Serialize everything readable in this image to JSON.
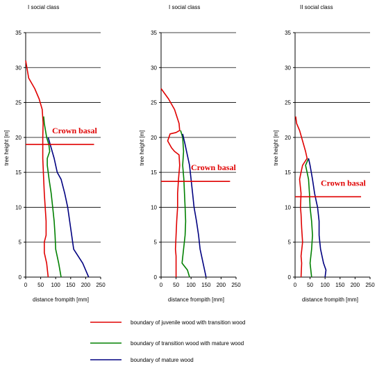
{
  "chart_data": [
    {
      "type": "line",
      "title": "I social class",
      "xlabel": "distance frompith [mm]",
      "ylabel": "tree height [m]",
      "xlim": [
        0,
        250
      ],
      "ylim": [
        0,
        35
      ],
      "xticks": [
        "0",
        "50",
        "100",
        "150",
        "200",
        "250"
      ],
      "yticks": [
        "0",
        "5",
        "10",
        "15",
        "20",
        "25",
        "30",
        "35"
      ],
      "grid": "horizontal",
      "annotation": {
        "text": "Crown basal",
        "height": 19,
        "x_range": [
          0,
          228
        ]
      },
      "series": [
        {
          "color": "#e00000",
          "points": [
            [
              75,
              0
            ],
            [
              70,
              2
            ],
            [
              62,
              3.5
            ],
            [
              62,
              5
            ],
            [
              68,
              6
            ],
            [
              68,
              8
            ],
            [
              65,
              10
            ],
            [
              62,
              12
            ],
            [
              60,
              14
            ],
            [
              57,
              17
            ],
            [
              57,
              20
            ],
            [
              58,
              22
            ],
            [
              55,
              24
            ],
            [
              45,
              25.5
            ],
            [
              30,
              27
            ],
            [
              10,
              28.5
            ],
            [
              0,
              31
            ]
          ]
        },
        {
          "color": "#008000",
          "points": [
            [
              118,
              0
            ],
            [
              110,
              2
            ],
            [
              100,
              4
            ],
            [
              98,
              6
            ],
            [
              95,
              8
            ],
            [
              90,
              10
            ],
            [
              85,
              12
            ],
            [
              78,
              14
            ],
            [
              72,
              16
            ],
            [
              72,
              17
            ],
            [
              80,
              18
            ],
            [
              77,
              19
            ],
            [
              70,
              20
            ],
            [
              62,
              22
            ],
            [
              60,
              23
            ]
          ]
        },
        {
          "color": "#000080",
          "points": [
            [
              210,
              0
            ],
            [
              200,
              1
            ],
            [
              190,
              2
            ],
            [
              160,
              4
            ],
            [
              150,
              7
            ],
            [
              140,
              10
            ],
            [
              130,
              12
            ],
            [
              118,
              14
            ],
            [
              105,
              15
            ],
            [
              95,
              17
            ],
            [
              85,
              18.5
            ],
            [
              75,
              20
            ]
          ]
        }
      ]
    },
    {
      "type": "line",
      "title": "I social class",
      "xlabel": "distance frompith [mm]",
      "ylabel": "tree height [m]",
      "xlim": [
        0,
        250
      ],
      "ylim": [
        0,
        35
      ],
      "xticks": [
        "0",
        "50",
        "100",
        "150",
        "200",
        "250"
      ],
      "yticks": [
        "0",
        "5",
        "10",
        "15",
        "20",
        "25",
        "30",
        "35"
      ],
      "grid": "horizontal",
      "annotation": {
        "text": "Crown basal",
        "height": 13.7,
        "x_range": [
          0,
          230
        ]
      },
      "series": [
        {
          "color": "#e00000",
          "points": [
            [
              50,
              0
            ],
            [
              50,
              3
            ],
            [
              48,
              4
            ],
            [
              50,
              6
            ],
            [
              52,
              8
            ],
            [
              55,
              10
            ],
            [
              55,
              12
            ],
            [
              58,
              14
            ],
            [
              62,
              16
            ],
            [
              60,
              17.5
            ],
            [
              45,
              18
            ],
            [
              35,
              18.5
            ],
            [
              22,
              19.5
            ],
            [
              30,
              20.5
            ],
            [
              50,
              20.7
            ],
            [
              62,
              21
            ],
            [
              60,
              22
            ],
            [
              45,
              24
            ],
            [
              25,
              25.5
            ],
            [
              0,
              27
            ]
          ]
        },
        {
          "color": "#008000",
          "points": [
            [
              95,
              0
            ],
            [
              88,
              1
            ],
            [
              70,
              2
            ],
            [
              75,
              4
            ],
            [
              80,
              6
            ],
            [
              82,
              8
            ],
            [
              80,
              10
            ],
            [
              78,
              12
            ],
            [
              76,
              14
            ],
            [
              72,
              16
            ],
            [
              75,
              18
            ],
            [
              72,
              20
            ],
            [
              65,
              21
            ]
          ]
        },
        {
          "color": "#000080",
          "points": [
            [
              150,
              0
            ],
            [
              140,
              2
            ],
            [
              130,
              4
            ],
            [
              125,
              6
            ],
            [
              118,
              8
            ],
            [
              110,
              10
            ],
            [
              105,
              12
            ],
            [
              100,
              14
            ],
            [
              95,
              16
            ],
            [
              85,
              18
            ],
            [
              80,
              19
            ],
            [
              72,
              20.5
            ]
          ]
        }
      ]
    },
    {
      "type": "line",
      "title": "II social class",
      "xlabel": "distance frompith [mm]",
      "ylabel": "tree height [m]",
      "xlim": [
        0,
        250
      ],
      "ylim": [
        0,
        35
      ],
      "xticks": [
        "0",
        "50",
        "100",
        "150",
        "200",
        "250"
      ],
      "yticks": [
        "0",
        "5",
        "10",
        "15",
        "20",
        "25",
        "30",
        "35"
      ],
      "grid": "horizontal",
      "annotation": {
        "text": "Crown basal",
        "height": 11.5,
        "x_range": [
          0,
          220
        ]
      },
      "series": [
        {
          "color": "#e00000",
          "points": [
            [
              20,
              0
            ],
            [
              22,
              2
            ],
            [
              20,
              3
            ],
            [
              25,
              5
            ],
            [
              22,
              7
            ],
            [
              20,
              9
            ],
            [
              18,
              10
            ],
            [
              20,
              12
            ],
            [
              15,
              14
            ],
            [
              20,
              15
            ],
            [
              25,
              16
            ],
            [
              40,
              17
            ],
            [
              35,
              18
            ],
            [
              25,
              19.5
            ],
            [
              15,
              21
            ],
            [
              5,
              22
            ],
            [
              2,
              23
            ]
          ]
        },
        {
          "color": "#008000",
          "points": [
            [
              55,
              0
            ],
            [
              50,
              2
            ],
            [
              55,
              4
            ],
            [
              58,
              6
            ],
            [
              55,
              8
            ],
            [
              50,
              10
            ],
            [
              48,
              12
            ],
            [
              45,
              14
            ],
            [
              40,
              15
            ],
            [
              35,
              16
            ],
            [
              45,
              17
            ]
          ]
        },
        {
          "color": "#000080",
          "points": [
            [
              100,
              0
            ],
            [
              103,
              1
            ],
            [
              95,
              2
            ],
            [
              85,
              4
            ],
            [
              80,
              6
            ],
            [
              80,
              8
            ],
            [
              75,
              10
            ],
            [
              70,
              11
            ],
            [
              65,
              12
            ],
            [
              58,
              14
            ],
            [
              50,
              16
            ],
            [
              45,
              17
            ]
          ]
        }
      ]
    }
  ],
  "legend": [
    {
      "label": "boundary of juvenile wood with transition wood",
      "color": "#e00000"
    },
    {
      "label": "boundary of transition wood with mature wood",
      "color": "#008000"
    },
    {
      "label": "boundary of mature wood",
      "color": "#000080"
    }
  ]
}
